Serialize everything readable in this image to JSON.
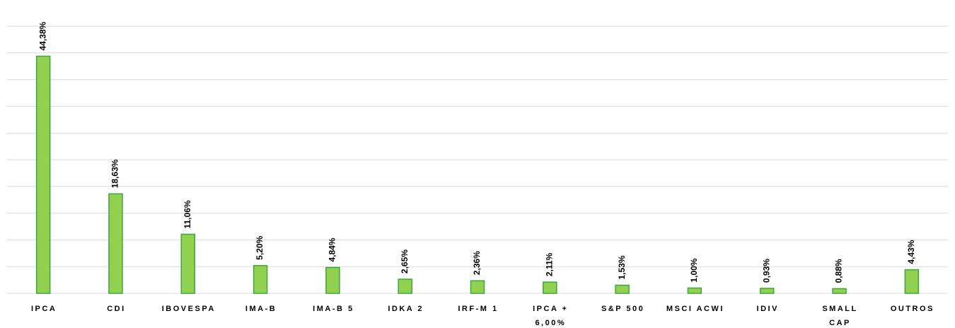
{
  "chart_data": {
    "type": "bar",
    "categories": [
      "IPCA",
      "CDI",
      "IBOVESPA",
      "IMA-B",
      "IMA-B 5",
      "IDKA 2",
      "IRF-M 1",
      "IPCA + 6,00%",
      "S&P 500",
      "MSCI ACWI",
      "IDIV",
      "SMALL CAP",
      "OUTROS"
    ],
    "values": [
      44.38,
      18.63,
      11.06,
      5.2,
      4.84,
      2.65,
      2.36,
      2.11,
      1.53,
      1.0,
      0.93,
      0.88,
      4.43
    ],
    "value_labels": [
      "44,38%",
      "18,63%",
      "11,06%",
      "5,20%",
      "4,84%",
      "2,65%",
      "2,36%",
      "2,11%",
      "1,53%",
      "1,00%",
      "0,93%",
      "0,88%",
      "4,43%"
    ],
    "color": "#92d050",
    "edge_color": "#3aa83a",
    "ylim": [
      0,
      50
    ],
    "yticks": [
      0,
      5,
      10,
      15,
      20,
      25,
      30,
      35,
      40,
      45,
      50
    ],
    "grid": true
  }
}
